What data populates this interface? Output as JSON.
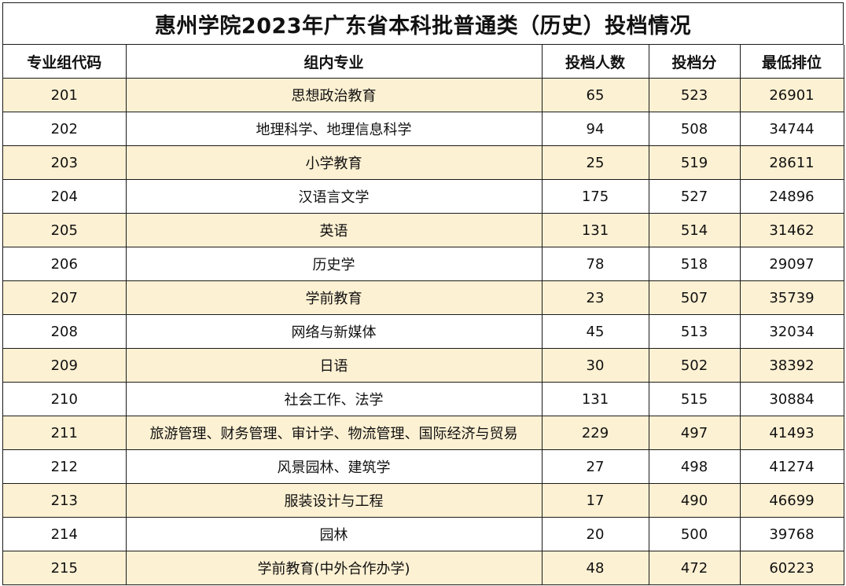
{
  "title": "惠州学院2023年广东省本科批普通类（历史）投档情况",
  "columns": [
    "专业组代码",
    "组内专业",
    "投档人数",
    "投档分",
    "最低排位"
  ],
  "rows": [
    {
      "code": "201",
      "majors": "思想政治教育",
      "count": "65",
      "score": "523",
      "rank": "26901"
    },
    {
      "code": "202",
      "majors": "地理科学、地理信息科学",
      "count": "94",
      "score": "508",
      "rank": "34744"
    },
    {
      "code": "203",
      "majors": "小学教育",
      "count": "25",
      "score": "519",
      "rank": "28611"
    },
    {
      "code": "204",
      "majors": "汉语言文学",
      "count": "175",
      "score": "527",
      "rank": "24896"
    },
    {
      "code": "205",
      "majors": "英语",
      "count": "131",
      "score": "514",
      "rank": "31462"
    },
    {
      "code": "206",
      "majors": "历史学",
      "count": "78",
      "score": "518",
      "rank": "29097"
    },
    {
      "code": "207",
      "majors": "学前教育",
      "count": "23",
      "score": "507",
      "rank": "35739"
    },
    {
      "code": "208",
      "majors": "网络与新媒体",
      "count": "45",
      "score": "513",
      "rank": "32034"
    },
    {
      "code": "209",
      "majors": "日语",
      "count": "30",
      "score": "502",
      "rank": "38392"
    },
    {
      "code": "210",
      "majors": "社会工作、法学",
      "count": "131",
      "score": "515",
      "rank": "30884"
    },
    {
      "code": "211",
      "majors": "旅游管理、财务管理、审计学、物流管理、国际经济与贸易",
      "count": "229",
      "score": "497",
      "rank": "41493"
    },
    {
      "code": "212",
      "majors": "风景园林、建筑学",
      "count": "27",
      "score": "498",
      "rank": "41274"
    },
    {
      "code": "213",
      "majors": "服装设计与工程",
      "count": "17",
      "score": "490",
      "rank": "46699"
    },
    {
      "code": "214",
      "majors": "园林",
      "count": "20",
      "score": "500",
      "rank": "39768"
    },
    {
      "code": "215",
      "majors": "学前教育(中外合作办学)",
      "count": "48",
      "score": "472",
      "rank": "60223"
    }
  ],
  "colors": {
    "band": "#fdf1d3",
    "plain": "#ffffff",
    "border": "#1a1a1a"
  }
}
